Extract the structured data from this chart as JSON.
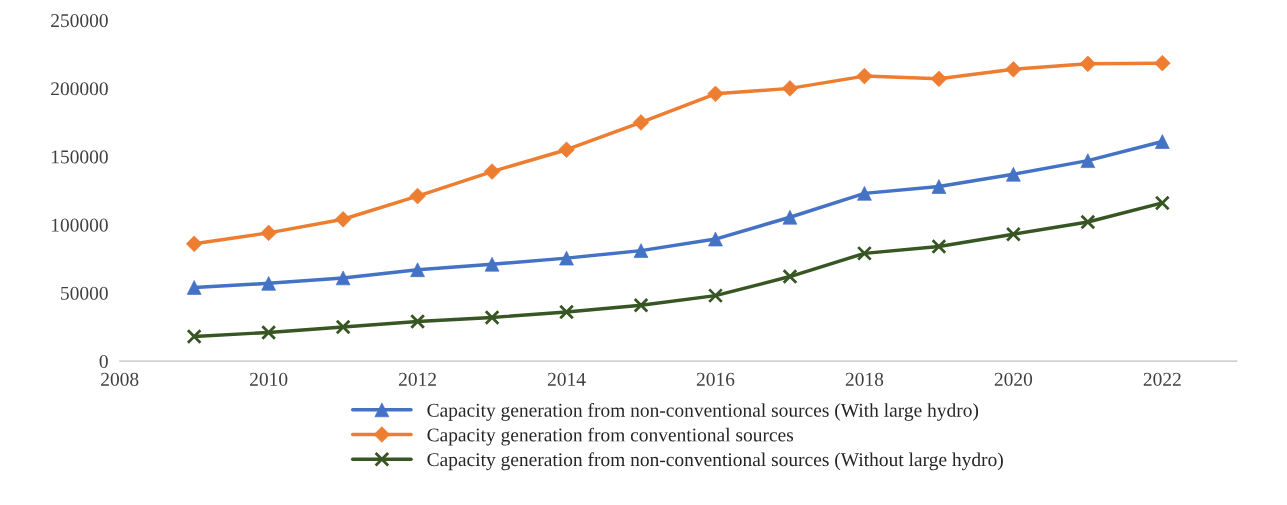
{
  "chart_data": {
    "type": "line",
    "x": [
      2009,
      2010,
      2011,
      2012,
      2013,
      2014,
      2015,
      2016,
      2017,
      2018,
      2019,
      2020,
      2021,
      2022
    ],
    "series": [
      {
        "name": "Capacity generation from non-conventional sources (With large hydro)",
        "color": "#4472c4",
        "marker": "triangle",
        "values": [
          54000,
          57000,
          61000,
          67000,
          71000,
          75500,
          81000,
          89500,
          105500,
          123000,
          128000,
          137000,
          147000,
          161000
        ]
      },
      {
        "name": "Capacity generation from conventional sources",
        "color": "#ed7d31",
        "marker": "diamond",
        "values": [
          86000,
          94000,
          104000,
          121000,
          139000,
          155000,
          175000,
          196000,
          200000,
          209000,
          207000,
          214000,
          218000,
          218500
        ]
      },
      {
        "name": "Capacity generation from non-conventional sources (Without large hydro)",
        "color": "#375623",
        "marker": "cross",
        "values": [
          18000,
          21000,
          25000,
          29000,
          32000,
          36000,
          41000,
          48000,
          62000,
          79000,
          84000,
          93000,
          102000,
          116000
        ]
      }
    ],
    "xlim": [
      2008,
      2023
    ],
    "xticks": [
      2008,
      2010,
      2012,
      2014,
      2016,
      2018,
      2020,
      2022
    ],
    "ylim": [
      0,
      250000
    ],
    "yticks": [
      0,
      50000,
      100000,
      150000,
      200000,
      250000
    ],
    "grid": false,
    "legend": "bottom",
    "line_style": "solid"
  }
}
